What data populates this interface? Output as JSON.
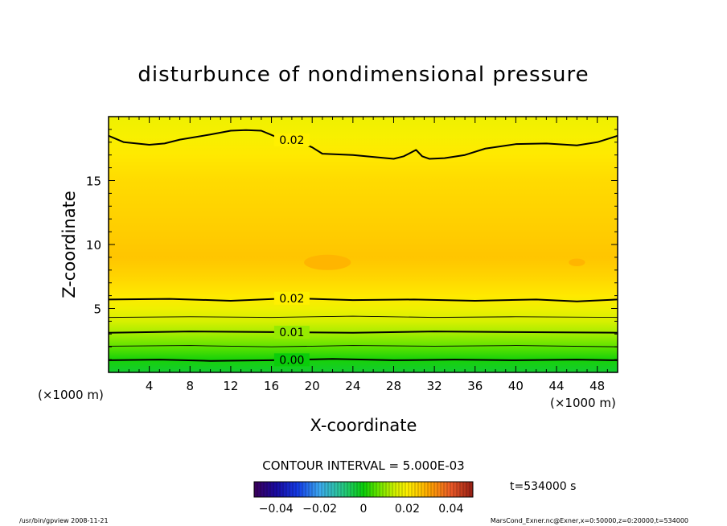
{
  "chart_data": {
    "type": "heatmap",
    "title": "disturbunce of nondimensional pressure",
    "xlabel": "X-coordinate",
    "ylabel": "Z-coordinate",
    "x_unit_left": "(×1000 m)",
    "x_unit_right": "(×1000 m)",
    "xlim": [
      0,
      50
    ],
    "ylim": [
      0,
      20
    ],
    "xticks": [
      4,
      8,
      12,
      16,
      20,
      24,
      28,
      32,
      36,
      40,
      44,
      48
    ],
    "yticks": [
      5,
      10,
      15
    ],
    "contour_interval_text": "CONTOUR INTERVAL = 5.000E-03",
    "time_text": "t=534000 s",
    "colorbar": {
      "range": [
        -0.05,
        0.05
      ],
      "tick_values": [
        -0.04,
        -0.02,
        0,
        0.02,
        0.04
      ],
      "tick_labels": [
        "−0.04",
        "−0.02",
        "0",
        "0.02",
        "0.04"
      ]
    },
    "footer_left": "/usr/bin/gpview   2008-11-21",
    "footer_right": "MarsCond_Exner.nc@Exner,x=0:50000,z=0:20000,t=534000",
    "field_profile": [
      {
        "z": 0.0,
        "value": -0.003
      },
      {
        "z": 1.0,
        "value": 0.001
      },
      {
        "z": 2.0,
        "value": 0.006
      },
      {
        "z": 3.0,
        "value": 0.011
      },
      {
        "z": 4.0,
        "value": 0.015
      },
      {
        "z": 5.0,
        "value": 0.018
      },
      {
        "z": 6.0,
        "value": 0.021
      },
      {
        "z": 7.5,
        "value": 0.024
      },
      {
        "z": 9.0,
        "value": 0.026
      },
      {
        "z": 11.0,
        "value": 0.025
      },
      {
        "z": 13.0,
        "value": 0.024
      },
      {
        "z": 15.0,
        "value": 0.023
      },
      {
        "z": 17.0,
        "value": 0.021
      },
      {
        "z": 18.5,
        "value": 0.019
      },
      {
        "z": 20.0,
        "value": 0.018
      }
    ],
    "contour_lines": [
      {
        "value": 0.0,
        "label": "0.00",
        "points": [
          [
            0,
            0.95
          ],
          [
            5,
            1.0
          ],
          [
            10,
            0.9
          ],
          [
            16,
            0.95
          ],
          [
            22,
            1.05
          ],
          [
            28,
            0.95
          ],
          [
            34,
            1.0
          ],
          [
            40,
            0.95
          ],
          [
            46,
            1.0
          ],
          [
            50,
            0.95
          ]
        ]
      },
      {
        "value": 0.005,
        "label": "",
        "points": [
          [
            0,
            2.05
          ],
          [
            8,
            2.1
          ],
          [
            16,
            2.0
          ],
          [
            24,
            2.1
          ],
          [
            32,
            2.05
          ],
          [
            40,
            2.1
          ],
          [
            50,
            2.0
          ]
        ]
      },
      {
        "value": 0.01,
        "label": "0.01",
        "points": [
          [
            0,
            3.1
          ],
          [
            8,
            3.2
          ],
          [
            16,
            3.15
          ],
          [
            24,
            3.1
          ],
          [
            32,
            3.2
          ],
          [
            40,
            3.15
          ],
          [
            50,
            3.1
          ]
        ]
      },
      {
        "value": 0.015,
        "label": "",
        "points": [
          [
            0,
            4.3
          ],
          [
            8,
            4.35
          ],
          [
            16,
            4.3
          ],
          [
            24,
            4.4
          ],
          [
            32,
            4.3
          ],
          [
            40,
            4.35
          ],
          [
            50,
            4.3
          ]
        ]
      },
      {
        "value": 0.02,
        "label": "0.02",
        "points": [
          [
            0,
            5.7
          ],
          [
            6,
            5.75
          ],
          [
            12,
            5.6
          ],
          [
            18,
            5.8
          ],
          [
            24,
            5.65
          ],
          [
            30,
            5.7
          ],
          [
            36,
            5.6
          ],
          [
            42,
            5.7
          ],
          [
            46,
            5.55
          ],
          [
            50,
            5.7
          ]
        ]
      },
      {
        "value": 0.02,
        "label": "0.02",
        "points": [
          [
            0,
            18.5
          ],
          [
            1.5,
            18.0
          ],
          [
            4,
            17.8
          ],
          [
            5.5,
            17.9
          ],
          [
            7,
            18.2
          ],
          [
            10,
            18.6
          ],
          [
            12,
            18.9
          ],
          [
            13.5,
            18.95
          ],
          [
            15,
            18.9
          ],
          [
            16.5,
            18.4
          ],
          [
            18.5,
            18.1
          ],
          [
            20,
            17.6
          ],
          [
            21,
            17.1
          ],
          [
            24,
            17.0
          ],
          [
            26,
            16.85
          ],
          [
            28,
            16.7
          ],
          [
            29,
            16.9
          ],
          [
            30.2,
            17.4
          ],
          [
            30.8,
            16.9
          ],
          [
            31.5,
            16.7
          ],
          [
            33,
            16.75
          ],
          [
            35,
            17.0
          ],
          [
            37,
            17.5
          ],
          [
            40,
            17.85
          ],
          [
            43,
            17.9
          ],
          [
            46,
            17.75
          ],
          [
            48,
            18.0
          ],
          [
            50,
            18.5
          ]
        ]
      }
    ],
    "local_extrema": [
      {
        "x": 21.5,
        "z": 8.6,
        "rx": 2.3,
        "rz": 0.6,
        "value": 0.028
      },
      {
        "x": 46.0,
        "z": 8.6,
        "rx": 0.8,
        "rz": 0.3,
        "value": 0.028
      }
    ]
  }
}
